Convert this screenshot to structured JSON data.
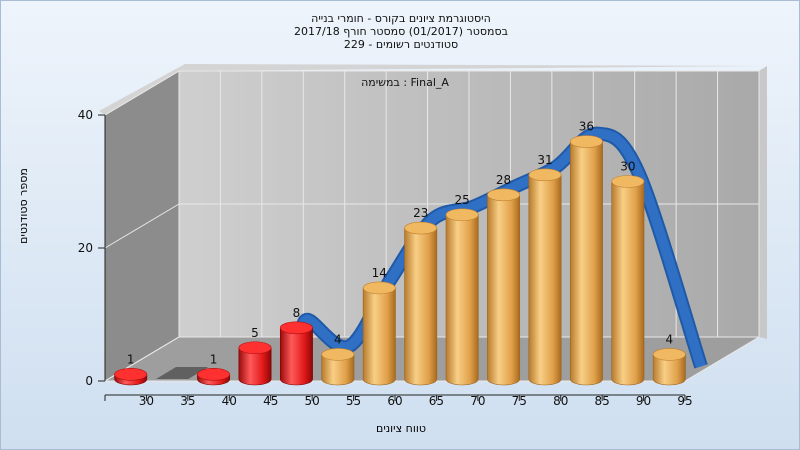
{
  "title": {
    "line1": "היסטוגרמת ציונים בקורס - חומרי בנייה",
    "line2": "בסמסטר  (01/2017)  סמסטר חורף 2017/18",
    "line3": "סטודנטים רשומים - 229"
  },
  "chart_data": {
    "type": "bar",
    "annotation": "במשימה : Final_A",
    "xlabel": "טווח ציונים",
    "ylabel": "מספר סטודנטים",
    "ylim": [
      0,
      40
    ],
    "yticks": [
      0,
      20,
      40
    ],
    "xticks": [
      "30",
      "35",
      "40",
      "45",
      "50",
      "55",
      "60",
      "65",
      "70",
      "75",
      "80",
      "85",
      "90",
      "95"
    ],
    "categories": [
      "30-35",
      "35-40",
      "40-45",
      "45-50",
      "50-55",
      "55-60",
      "60-65",
      "65-70",
      "70-75",
      "75-80",
      "80-85",
      "85-90",
      "90-95",
      "95-100"
    ],
    "values": [
      1,
      0,
      1,
      5,
      8,
      4,
      14,
      23,
      25,
      28,
      31,
      36,
      30,
      4
    ],
    "fail_threshold": 55,
    "colors": {
      "fail": "#e01818",
      "pass": "#e8a850",
      "curve": "#2f6fc4",
      "zero": "#606060"
    },
    "curve_ends": [
      {
        "x": 52,
        "y": 4
      },
      {
        "x": 100,
        "y": 1
      }
    ]
  }
}
